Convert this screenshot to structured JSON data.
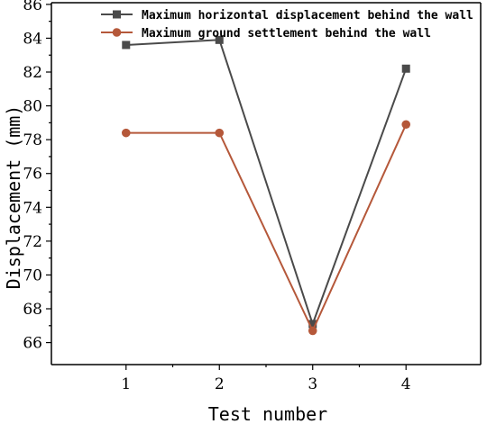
{
  "chart_data": {
    "type": "line",
    "xlabel": "Test number",
    "ylabel": "Displacement (mm)",
    "x": [
      1,
      2,
      3,
      4
    ],
    "xlim": [
      0.2,
      4.8
    ],
    "ylim": [
      64.7,
      86.1
    ],
    "yticks": [
      66,
      68,
      70,
      72,
      74,
      76,
      78,
      80,
      82,
      84,
      86
    ],
    "xticks": [
      1,
      2,
      3,
      4
    ],
    "legend_position": "top",
    "grid": false,
    "series": [
      {
        "name": "Maximum horizontal displacement behind the wall",
        "values": [
          83.6,
          83.9,
          67.1,
          82.2
        ],
        "color": "#4a4a4a",
        "marker": "square"
      },
      {
        "name": "Maximum ground settlement behind the wall",
        "values": [
          78.4,
          78.4,
          66.7,
          78.9
        ],
        "color": "#b5583a",
        "marker": "circle"
      }
    ]
  }
}
